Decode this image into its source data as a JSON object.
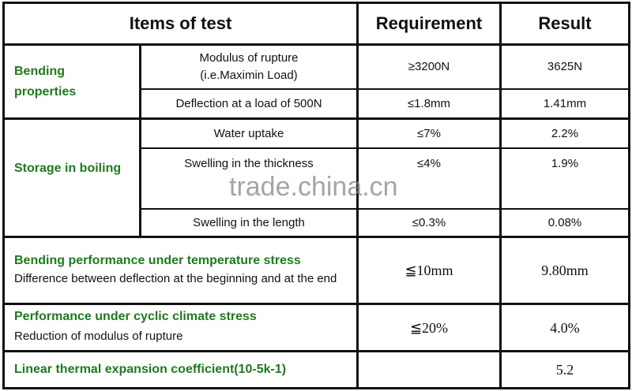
{
  "header": {
    "items": "Items of test",
    "requirement": "Requirement",
    "result": "Result"
  },
  "rows": {
    "bending": {
      "group": "Bending properties",
      "modulus": {
        "item_line1": "Modulus of rupture",
        "item_line2": "(i.e.Maximin Load)",
        "requirement": "≥3200N",
        "result": "3625N"
      },
      "deflection": {
        "item": "Deflection at a load of 500N",
        "requirement": "≤1.8mm",
        "result": "1.41mm"
      }
    },
    "boiling": {
      "group": "Storage in boiling",
      "water": {
        "item": "Water uptake",
        "requirement": "≤7%",
        "result": "2.2%"
      },
      "thickness": {
        "item": "Swelling in the thickness",
        "requirement": "≤4%",
        "result": "1.9%"
      },
      "length": {
        "item": "Swelling in the length",
        "requirement": "≤0.3%",
        "result": "0.08%"
      }
    },
    "temperature": {
      "title": "Bending performance under temperature stress",
      "desc": "Difference between deflection at the beginning and at the end",
      "requirement": "≦10mm",
      "result": "9.80mm"
    },
    "cyclic": {
      "title": "Performance under cyclic climate stress",
      "desc": "Reduction of modulus of rupture",
      "requirement": "≦20%",
      "result": "4.0%"
    },
    "thermal": {
      "title": "Linear thermal expansion coefficient(10-5k-1)",
      "requirement": "",
      "result": "5.2"
    }
  },
  "watermark": "trade.china.cn",
  "colors": {
    "group_label": "#1f7a1f",
    "border": "#111111"
  }
}
